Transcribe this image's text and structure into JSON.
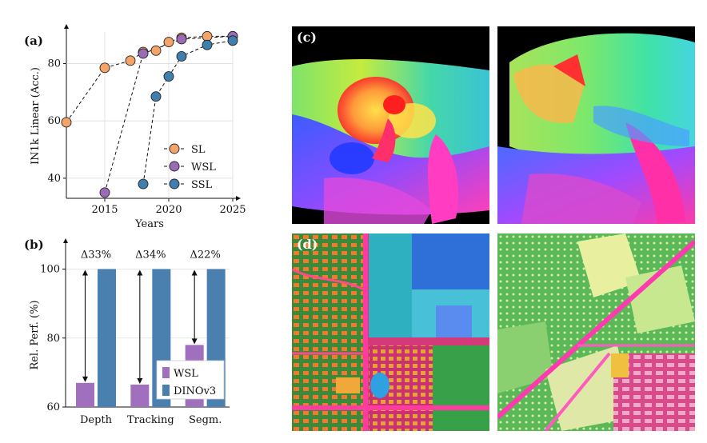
{
  "panel_a": {
    "label": "(a)",
    "chart_data": {
      "type": "line",
      "xlabel": "Years",
      "ylabel": "IN1k Linear (Acc.)",
      "xlim": [
        2012,
        2025
      ],
      "ylim": [
        33,
        91
      ],
      "x_ticks": [
        2015,
        2020,
        2025
      ],
      "y_ticks": [
        40,
        60,
        80
      ],
      "legend_placement": "right",
      "series": [
        {
          "name": "SL",
          "color": "#f4a468",
          "points": [
            [
              2012,
              59.5
            ],
            [
              2015,
              78.5
            ],
            [
              2017,
              81
            ],
            [
              2018,
              84
            ],
            [
              2019,
              84.5
            ],
            [
              2020,
              87.5
            ],
            [
              2021,
              89
            ],
            [
              2023,
              89.5
            ],
            [
              2025,
              89.5
            ]
          ]
        },
        {
          "name": "WSL",
          "color": "#9a6cb6",
          "points": [
            [
              2015,
              35
            ],
            [
              2018,
              83.5
            ],
            [
              2021,
              88.5
            ],
            [
              2025,
              89.5
            ]
          ]
        },
        {
          "name": "SSL",
          "color": "#3f7fae",
          "points": [
            [
              2018,
              38
            ],
            [
              2019,
              68.5
            ],
            [
              2020,
              75.5
            ],
            [
              2021,
              82.5
            ],
            [
              2023,
              86.5
            ],
            [
              2025,
              88
            ]
          ]
        }
      ]
    }
  },
  "panel_b": {
    "label": "(b)",
    "chart_data": {
      "type": "bar",
      "ylabel": "Rel. Perf. (%)",
      "categories": [
        "Depth",
        "Tracking",
        "Segm."
      ],
      "ylim": [
        60,
        108
      ],
      "y_ticks": [
        60,
        80,
        100
      ],
      "series": [
        {
          "name": "WSL",
          "color": "#a070bf",
          "values": [
            67,
            66.5,
            78
          ]
        },
        {
          "name": "DINOv3",
          "color": "#4a80b0",
          "values": [
            100,
            100,
            100
          ]
        }
      ],
      "annotations": [
        "Δ33%",
        "Δ34%",
        "Δ22%"
      ],
      "legend_placement": "bottom-right"
    }
  },
  "panel_c": {
    "label": "(c)"
  },
  "panel_d": {
    "label": "(d)"
  }
}
